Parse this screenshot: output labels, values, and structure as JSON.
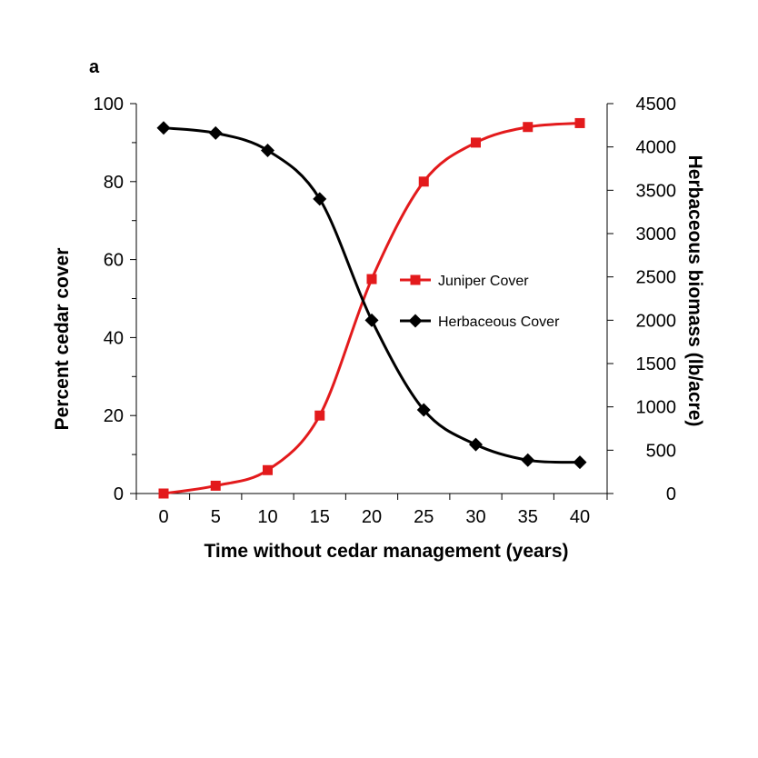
{
  "chart_data": {
    "type": "line",
    "panel_label": "a",
    "xlabel": "Time without cedar management (years)",
    "ylabel_left": "Percent cedar cover",
    "ylabel_right": "Herbaceous biomass (lb/acre)",
    "x": [
      0,
      5,
      10,
      15,
      20,
      25,
      30,
      35,
      40
    ],
    "x_ticks": [
      "0",
      "5",
      "10",
      "15",
      "20",
      "25",
      "30",
      "35",
      "40"
    ],
    "y_left_ticks": [
      "0",
      "20",
      "40",
      "60",
      "80",
      "100"
    ],
    "y_right_ticks": [
      "0",
      "500",
      "1000",
      "1500",
      "2000",
      "2500",
      "3000",
      "3500",
      "4000",
      "4500"
    ],
    "ylim_left": [
      0,
      100
    ],
    "ylim_right": [
      0,
      4500
    ],
    "series": [
      {
        "name": "Juniper Cover",
        "axis": "left",
        "color": "#e31a1c",
        "marker": "square",
        "values": [
          0,
          2,
          6,
          20,
          55,
          80,
          90,
          94,
          95
        ]
      },
      {
        "name": "Herbaceous Cover",
        "axis": "right",
        "color": "#000000",
        "marker": "diamond",
        "values": [
          4220,
          4160,
          3960,
          3400,
          2000,
          965,
          565,
          385,
          360
        ]
      }
    ],
    "legend_position": "center-right",
    "grid": false
  }
}
